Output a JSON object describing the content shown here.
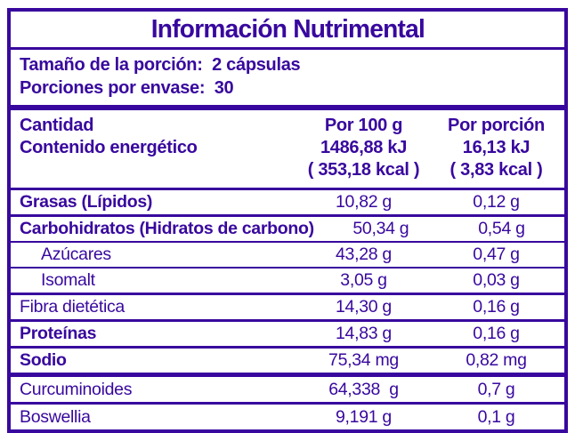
{
  "colors": {
    "purple": "#38089E",
    "background": "#FFFFFF"
  },
  "title": "Información Nutrimental",
  "serving": {
    "serving_size": "Tamaño de la porción:  2 cápsulas",
    "servings_per_container": "Porciones por envase:  30"
  },
  "header": {
    "col1": [
      "Cantidad",
      "Contenido energético"
    ],
    "per_100g": [
      "Por 100 g",
      "1486,88 kJ",
      "( 353,18 kcal )"
    ],
    "per_portion": [
      "Por porción",
      "16,13 kJ",
      "( 3,83 kcal )"
    ]
  },
  "rows": [
    {
      "label": "Grasas (Lípidos)",
      "per_100g": "10,82 g",
      "per_portion": "0,12 g"
    },
    {
      "label": "Carbohidratos (Hidratos de carbono)",
      "per_100g": "50,34 g",
      "per_portion": "0,54 g"
    },
    {
      "label": "Azúcares",
      "per_100g": "43,28 g",
      "per_portion": "0,47 g"
    },
    {
      "label": "Isomalt",
      "per_100g": "3,05 g",
      "per_portion": "0,03 g"
    },
    {
      "label": "Fibra dietética",
      "per_100g": "14,30 g",
      "per_portion": "0,16 g"
    },
    {
      "label": "Proteínas",
      "per_100g": "14,83 g",
      "per_portion": "0,16 g"
    },
    {
      "label": "Sodio",
      "per_100g": "75,34 mg",
      "per_portion": "0,82 mg"
    }
  ],
  "extra_rows": [
    {
      "label": "Curcuminoides",
      "per_100g": "64,338  g",
      "per_portion": "0,7 g"
    },
    {
      "label": "Boswellia",
      "per_100g": "9,191 g",
      "per_portion": "0,1 g"
    }
  ]
}
